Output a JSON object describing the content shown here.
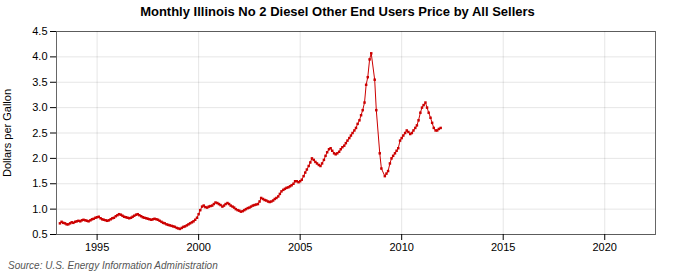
{
  "chart_data": {
    "type": "line",
    "title": "Monthly Illinois No 2 Diesel Other End Users Price by All Sellers",
    "ylabel": "Dollars per Gallon",
    "source": "Source: U.S. Energy Information Administration",
    "color": "#cc0000",
    "marker": "square",
    "line_style": "solid",
    "grid": true,
    "xlim": [
      1993.0,
      2022.5
    ],
    "ylim": [
      0.5,
      4.5
    ],
    "xticks": [
      1995,
      2000,
      2005,
      2010,
      2015,
      2020
    ],
    "yticks": [
      0.5,
      {
        "value": 1.0,
        "label": "1.0"
      },
      1.5,
      {
        "value": 2.0,
        "label": "2.0"
      },
      2.5,
      {
        "value": 3.0,
        "label": "3.0"
      },
      3.5,
      {
        "value": 4.0,
        "label": "4.0"
      },
      4.5
    ],
    "x": [
      1993.17,
      1993.25,
      1993.33,
      1993.42,
      1993.5,
      1993.58,
      1993.67,
      1993.75,
      1993.83,
      1993.92,
      1994.0,
      1994.08,
      1994.17,
      1994.25,
      1994.33,
      1994.42,
      1994.5,
      1994.58,
      1994.67,
      1994.75,
      1994.83,
      1994.92,
      1995.0,
      1995.08,
      1995.17,
      1995.25,
      1995.33,
      1995.42,
      1995.5,
      1995.58,
      1995.67,
      1995.75,
      1995.83,
      1995.92,
      1996.0,
      1996.08,
      1996.17,
      1996.25,
      1996.33,
      1996.42,
      1996.5,
      1996.58,
      1996.67,
      1996.75,
      1996.83,
      1996.92,
      1997.0,
      1997.08,
      1997.17,
      1997.25,
      1997.33,
      1997.42,
      1997.5,
      1997.58,
      1997.67,
      1997.75,
      1997.83,
      1997.92,
      1998.0,
      1998.08,
      1998.17,
      1998.25,
      1998.33,
      1998.42,
      1998.5,
      1998.58,
      1998.67,
      1998.75,
      1998.83,
      1998.92,
      1999.0,
      1999.08,
      1999.17,
      1999.25,
      1999.33,
      1999.42,
      1999.5,
      1999.58,
      1999.67,
      1999.75,
      1999.83,
      1999.92,
      2000.0,
      2000.08,
      2000.17,
      2000.25,
      2000.33,
      2000.42,
      2000.5,
      2000.58,
      2000.67,
      2000.75,
      2000.83,
      2000.92,
      2001.0,
      2001.08,
      2001.17,
      2001.25,
      2001.33,
      2001.42,
      2001.5,
      2001.58,
      2001.67,
      2001.75,
      2001.83,
      2001.92,
      2002.0,
      2002.08,
      2002.17,
      2002.25,
      2002.33,
      2002.42,
      2002.5,
      2002.58,
      2002.67,
      2002.75,
      2002.83,
      2002.92,
      2003.0,
      2003.08,
      2003.17,
      2003.25,
      2003.33,
      2003.42,
      2003.5,
      2003.58,
      2003.67,
      2003.75,
      2003.83,
      2003.92,
      2004.0,
      2004.08,
      2004.17,
      2004.25,
      2004.33,
      2004.42,
      2004.5,
      2004.58,
      2004.67,
      2004.75,
      2004.83,
      2004.92,
      2005.0,
      2005.08,
      2005.17,
      2005.25,
      2005.33,
      2005.42,
      2005.5,
      2005.58,
      2005.67,
      2005.75,
      2005.83,
      2005.92,
      2006.0,
      2006.08,
      2006.17,
      2006.25,
      2006.33,
      2006.42,
      2006.5,
      2006.58,
      2006.67,
      2006.75,
      2006.83,
      2006.92,
      2007.0,
      2007.08,
      2007.17,
      2007.25,
      2007.33,
      2007.42,
      2007.5,
      2007.58,
      2007.67,
      2007.75,
      2007.83,
      2007.92,
      2008.0,
      2008.08,
      2008.17,
      2008.25,
      2008.33,
      2008.42,
      2008.5,
      2008.67,
      2008.75,
      2008.92,
      2009.0,
      2009.17,
      2009.25,
      2009.33,
      2009.42,
      2009.5,
      2009.58,
      2009.67,
      2009.75,
      2009.83,
      2009.92,
      2010.0,
      2010.08,
      2010.17,
      2010.25,
      2010.33,
      2010.42,
      2010.5,
      2010.58,
      2010.67,
      2010.75,
      2010.83,
      2010.92,
      2011.0,
      2011.08,
      2011.17,
      2011.25,
      2011.33,
      2011.42,
      2011.5,
      2011.58,
      2011.67,
      2011.75,
      2011.83,
      2011.92
    ],
    "values": [
      0.72,
      0.75,
      0.73,
      0.72,
      0.7,
      0.7,
      0.72,
      0.74,
      0.73,
      0.75,
      0.76,
      0.77,
      0.76,
      0.78,
      0.79,
      0.78,
      0.77,
      0.76,
      0.78,
      0.8,
      0.81,
      0.83,
      0.84,
      0.85,
      0.82,
      0.8,
      0.79,
      0.78,
      0.77,
      0.78,
      0.8,
      0.82,
      0.83,
      0.86,
      0.88,
      0.9,
      0.89,
      0.87,
      0.85,
      0.84,
      0.83,
      0.82,
      0.83,
      0.85,
      0.87,
      0.89,
      0.9,
      0.88,
      0.86,
      0.84,
      0.83,
      0.82,
      0.81,
      0.8,
      0.79,
      0.8,
      0.81,
      0.8,
      0.79,
      0.77,
      0.75,
      0.73,
      0.72,
      0.7,
      0.69,
      0.68,
      0.67,
      0.66,
      0.65,
      0.63,
      0.62,
      0.61,
      0.63,
      0.65,
      0.66,
      0.68,
      0.7,
      0.72,
      0.74,
      0.76,
      0.79,
      0.83,
      0.9,
      0.98,
      1.05,
      1.07,
      1.04,
      1.03,
      1.05,
      1.06,
      1.07,
      1.1,
      1.13,
      1.12,
      1.1,
      1.08,
      1.05,
      1.07,
      1.1,
      1.12,
      1.1,
      1.07,
      1.05,
      1.03,
      1.0,
      0.98,
      0.97,
      0.95,
      0.96,
      0.98,
      1.0,
      1.02,
      1.03,
      1.05,
      1.07,
      1.08,
      1.09,
      1.1,
      1.15,
      1.22,
      1.2,
      1.18,
      1.17,
      1.15,
      1.14,
      1.15,
      1.17,
      1.2,
      1.22,
      1.25,
      1.3,
      1.35,
      1.38,
      1.4,
      1.42,
      1.43,
      1.45,
      1.47,
      1.5,
      1.55,
      1.55,
      1.53,
      1.55,
      1.58,
      1.65,
      1.72,
      1.78,
      1.85,
      1.92,
      2.0,
      1.97,
      1.93,
      1.9,
      1.87,
      1.85,
      1.9,
      1.97,
      2.05,
      2.12,
      2.18,
      2.2,
      2.15,
      2.1,
      2.08,
      2.1,
      2.13,
      2.18,
      2.22,
      2.25,
      2.3,
      2.35,
      2.4,
      2.45,
      2.5,
      2.55,
      2.6,
      2.68,
      2.75,
      2.85,
      2.95,
      3.1,
      3.45,
      3.6,
      3.95,
      4.07,
      3.55,
      2.95,
      2.1,
      1.8,
      1.65,
      1.7,
      1.75,
      1.9,
      2.0,
      2.05,
      2.1,
      2.15,
      2.2,
      2.35,
      2.4,
      2.45,
      2.5,
      2.55,
      2.52,
      2.48,
      2.5,
      2.55,
      2.6,
      2.65,
      2.75,
      2.9,
      3.0,
      3.05,
      3.1,
      3.0,
      2.9,
      2.8,
      2.7,
      2.6,
      2.55,
      2.55,
      2.58,
      2.6
    ]
  }
}
